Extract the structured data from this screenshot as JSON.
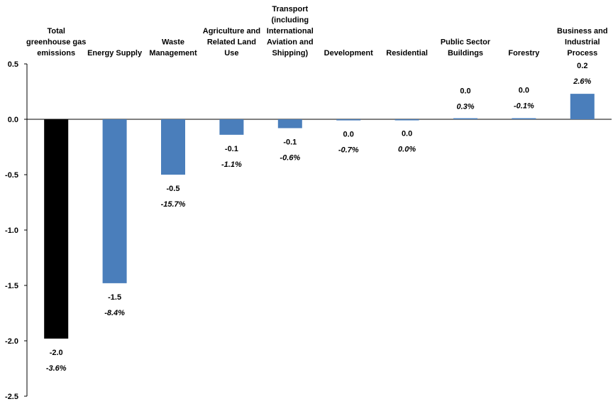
{
  "chart_data": {
    "type": "bar",
    "title": "",
    "xlabel": "",
    "ylabel": "",
    "ylim": [
      -2.5,
      0.5
    ],
    "yticks": [
      "0.5",
      "0.0",
      "-0.5",
      "-1.0",
      "-1.5",
      "-2.0",
      "-2.5"
    ],
    "grid": false,
    "legend": "none",
    "categories": [
      [
        "Total",
        "greenhouse gas",
        "emissions"
      ],
      [
        "Energy Supply"
      ],
      [
        "Waste",
        "Management"
      ],
      [
        "Agriculture and",
        "Related Land",
        "Use"
      ],
      [
        "Transport",
        "(including",
        "International",
        "Aviation and",
        "Shipping)"
      ],
      [
        "Development"
      ],
      [
        "Residential"
      ],
      [
        "Public Sector",
        "Buildings"
      ],
      [
        "Forestry"
      ],
      [
        "Business and",
        "Industrial",
        "Process"
      ]
    ],
    "values": [
      -1.98,
      -1.48,
      -0.5,
      -0.14,
      -0.08,
      -0.01,
      -0.002,
      0.003,
      0.01,
      0.23
    ],
    "value_labels": [
      "-2.0",
      "-1.5",
      "-0.5",
      "-0.1",
      "-0.1",
      "0.0",
      "0.0",
      "0.0",
      "0.0",
      "0.2"
    ],
    "percent_labels": [
      "-3.6%",
      "-8.4%",
      "-15.7%",
      "-1.1%",
      "-0.6%",
      "-0.7%",
      "0.0%",
      "0.3%",
      "-0.1%",
      "2.6%"
    ],
    "colors": [
      "#000000",
      "#4a7ebb",
      "#4a7ebb",
      "#4a7ebb",
      "#4a7ebb",
      "#4a7ebb",
      "#4a7ebb",
      "#4a7ebb",
      "#4a7ebb",
      "#4a7ebb"
    ],
    "axis_color": "#000000"
  }
}
